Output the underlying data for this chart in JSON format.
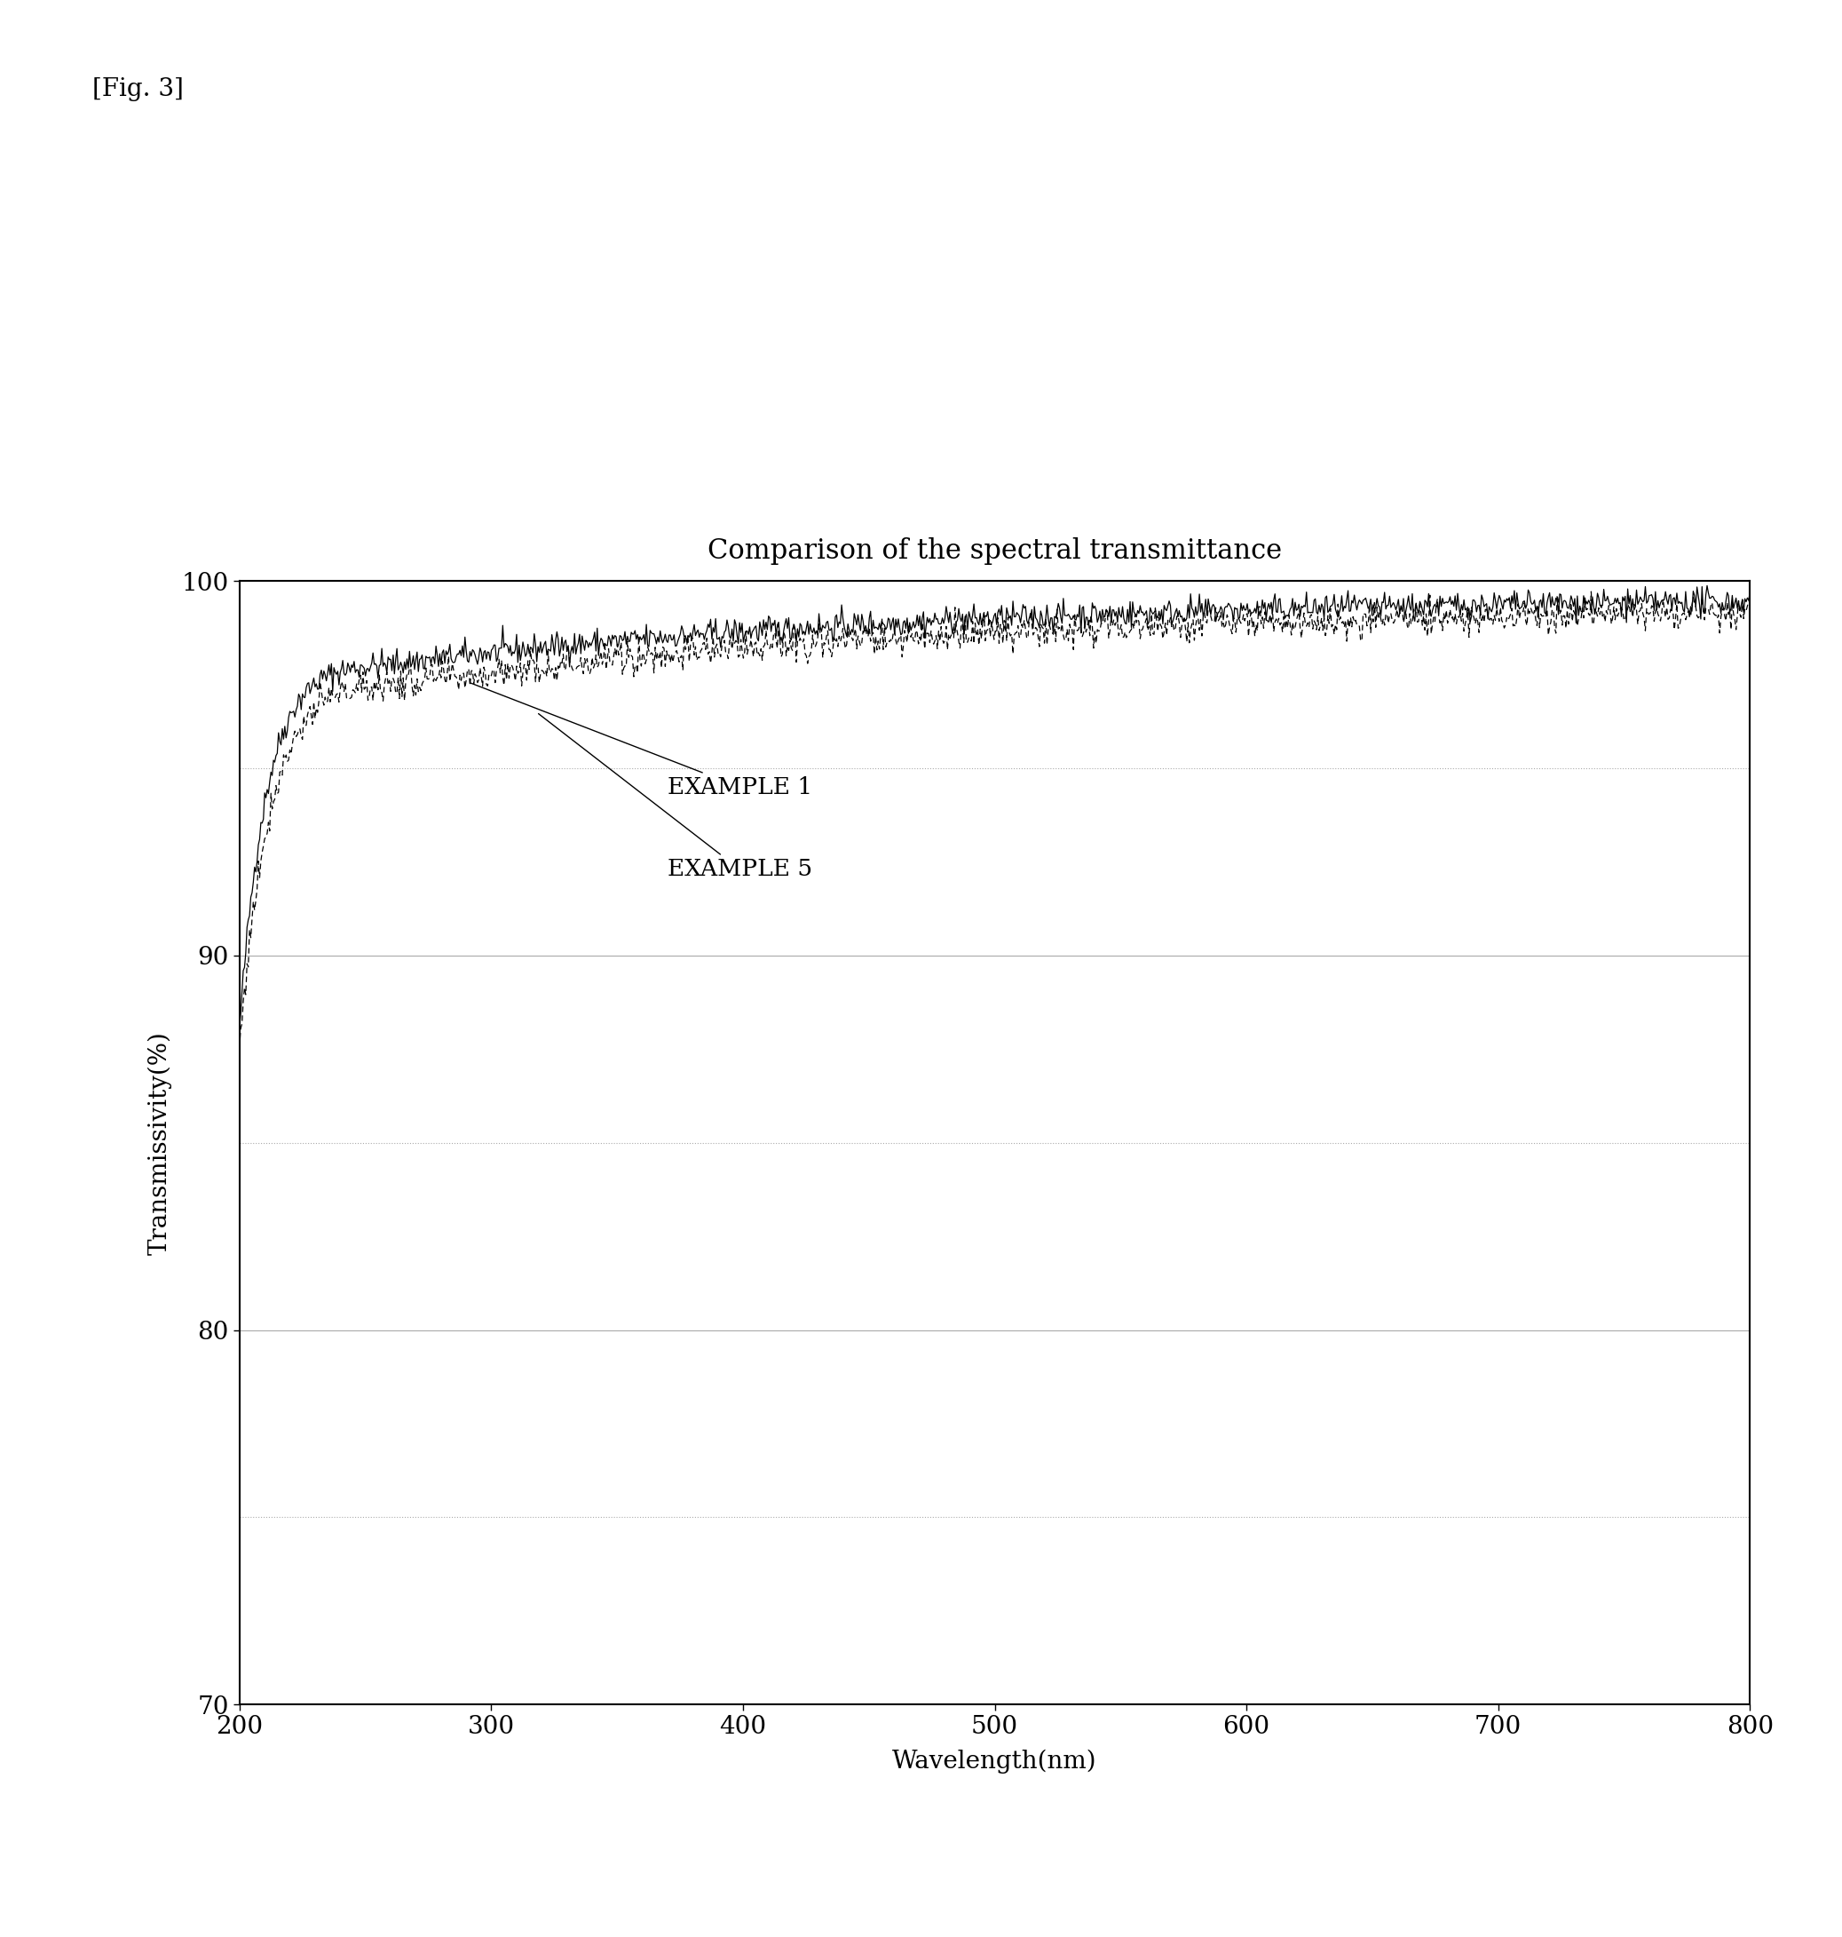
{
  "title": "Comparison of the spectral transmittance",
  "fig_label": "[Fig. 3]",
  "xlabel": "Wavelength(nm)",
  "ylabel": "Transmissivity(%)",
  "xlim": [
    200,
    800
  ],
  "ylim": [
    70,
    100
  ],
  "xticks": [
    200,
    300,
    400,
    500,
    600,
    700,
    800
  ],
  "yticks": [
    70,
    80,
    90,
    100
  ],
  "yticks_minor": [
    75,
    85,
    95
  ],
  "background_color": "#ffffff",
  "line_color": "#000000",
  "title_fontsize": 22,
  "label_fontsize": 20,
  "tick_fontsize": 20,
  "annotation_fontsize": 19,
  "example1_label": "EXAMPLE 1",
  "example5_label": "EXAMPLE 5",
  "grid_color": "#aaaaaa",
  "fig_label_fontsize": 20
}
